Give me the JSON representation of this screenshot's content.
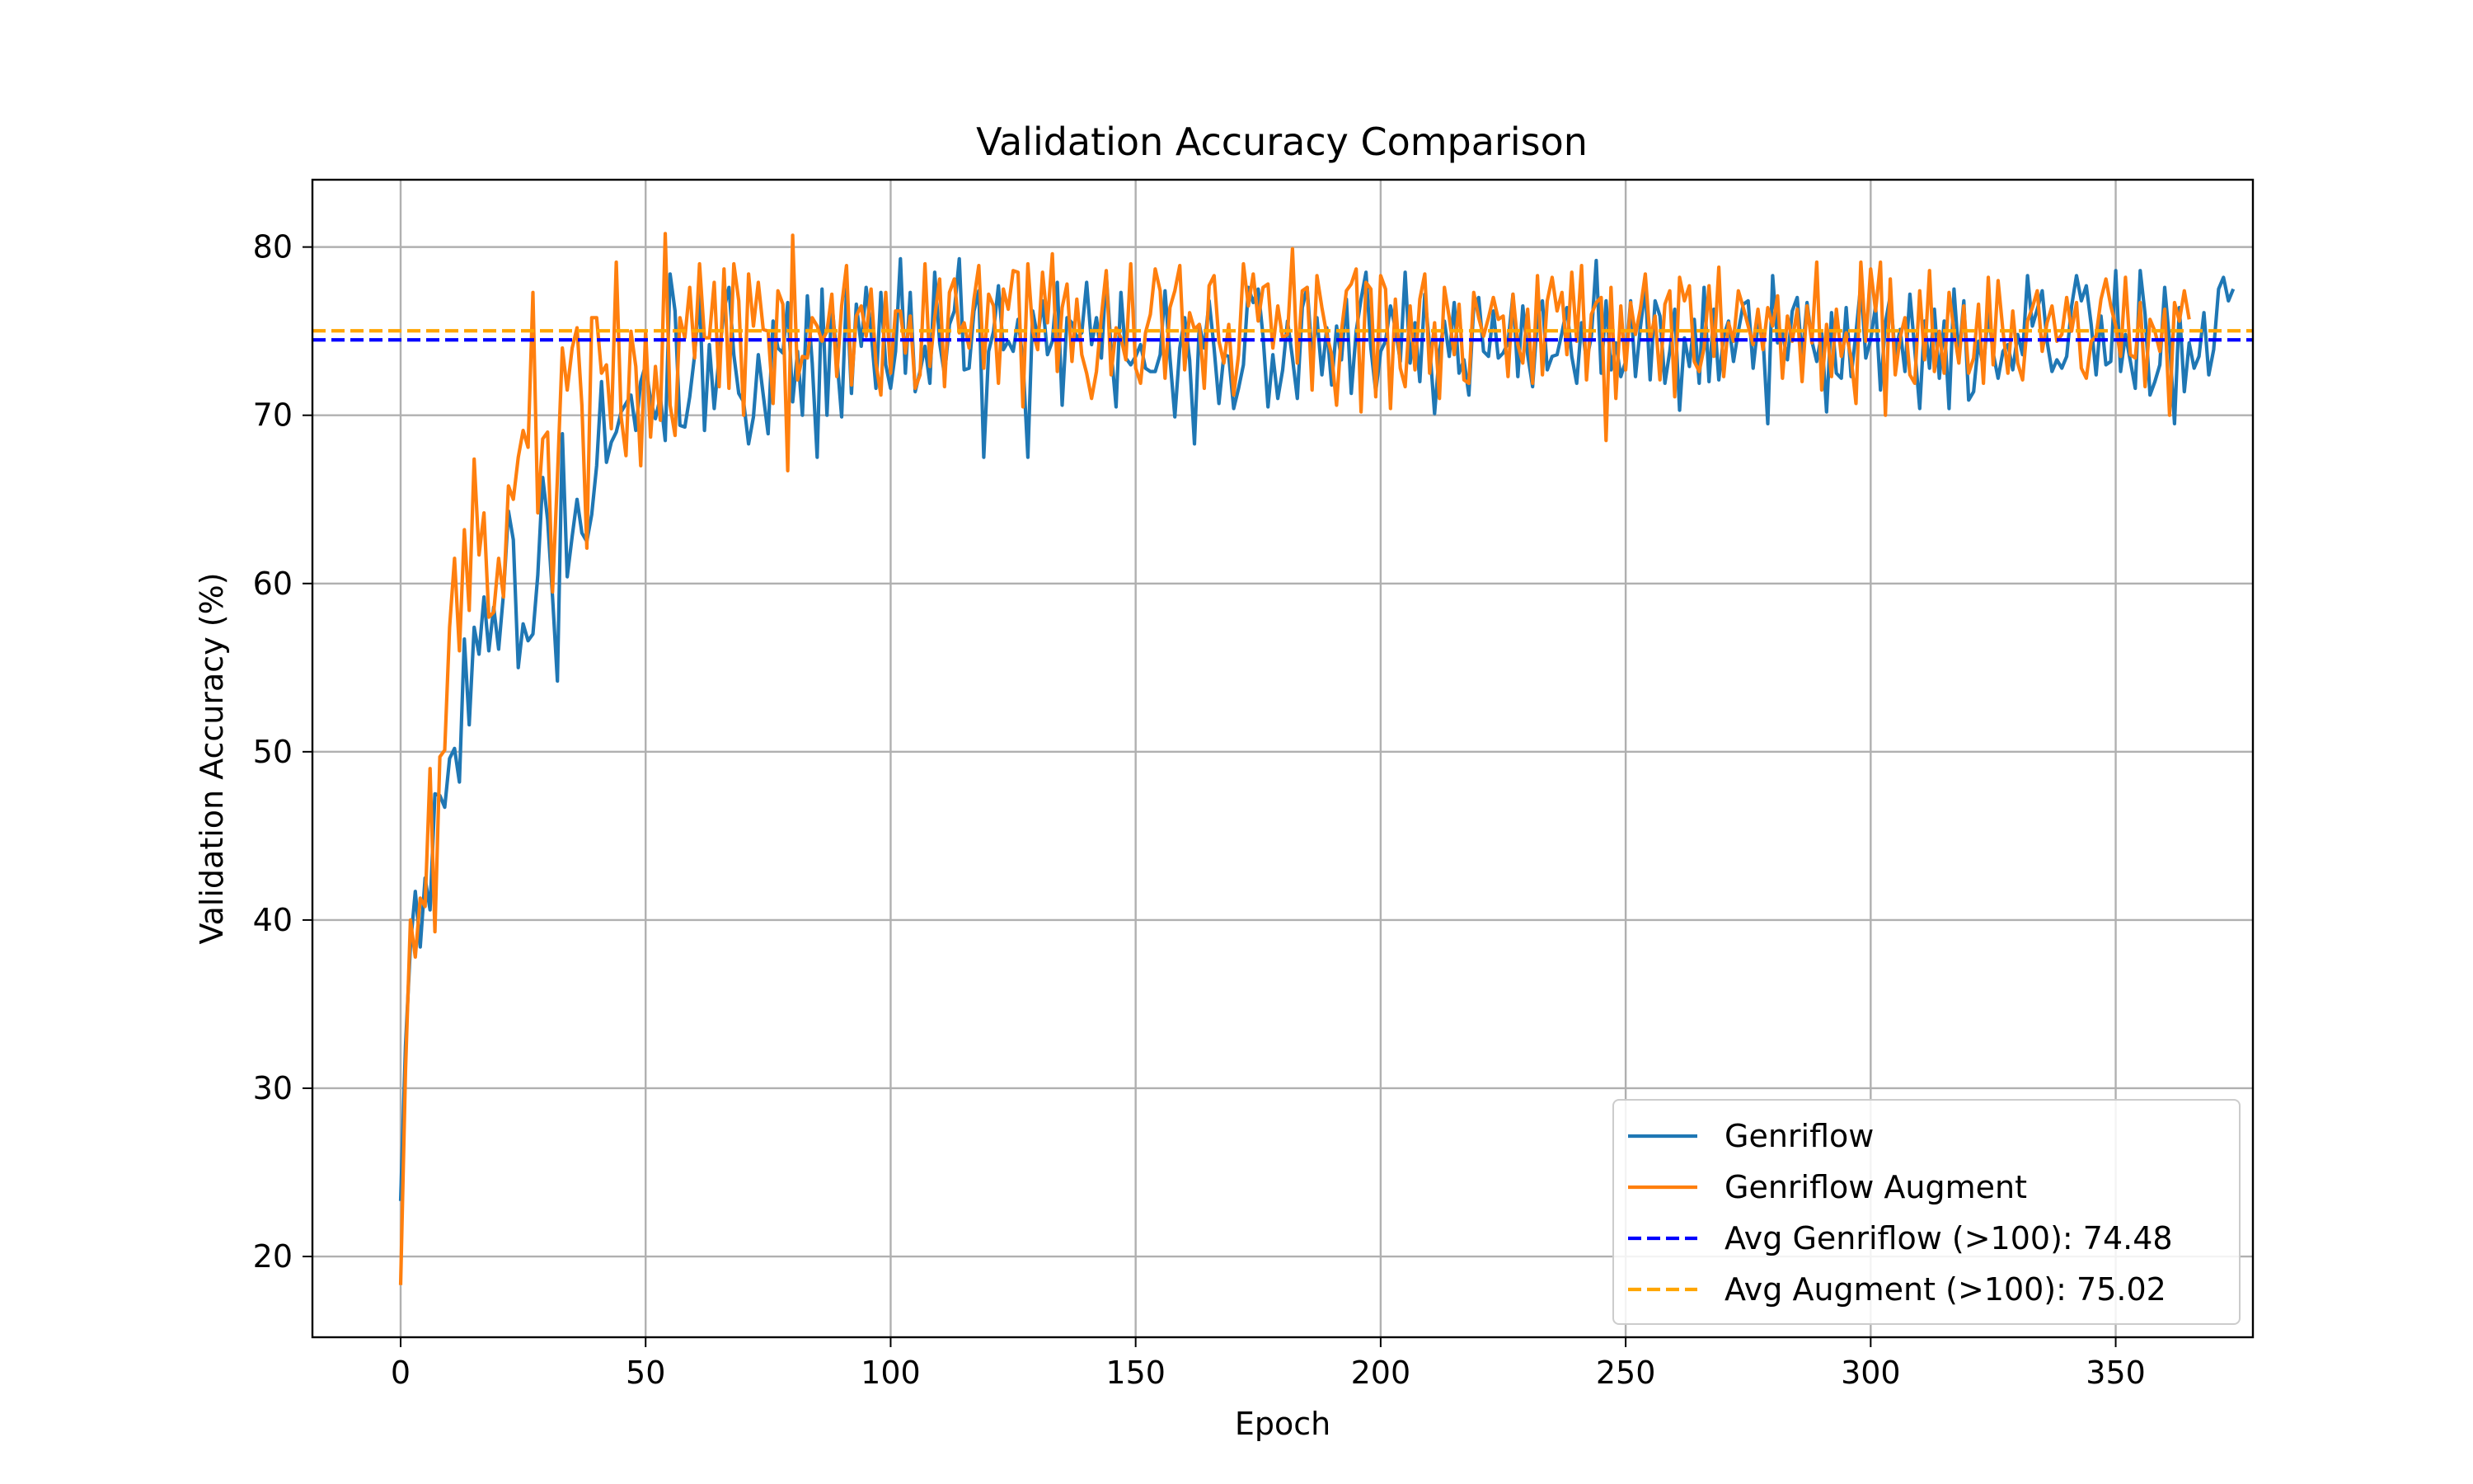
{
  "chart_data": {
    "type": "line",
    "title": "Validation Accuracy Comparison",
    "xlabel": "Epoch",
    "ylabel": "Validation Accuracy (%)",
    "xlim": [
      -18,
      378
    ],
    "ylim": [
      15.2,
      84.0
    ],
    "xticks": [
      0,
      50,
      100,
      150,
      200,
      250,
      300,
      350
    ],
    "yticks": [
      20,
      30,
      40,
      50,
      60,
      70,
      80
    ],
    "grid": true,
    "legend_position": "bottom-right",
    "x": {
      "start": 0,
      "end": 359,
      "step": 1
    },
    "series": [
      {
        "name": "Genriflow",
        "color": "#1f77b4",
        "style": "solid",
        "values": [
          23.3,
          32.5,
          38.5,
          41.7,
          38.4,
          42.5,
          40.6,
          47.5,
          47.4,
          46.7,
          49.6,
          50.2,
          48.2,
          56.7,
          51.6,
          57.4,
          55.8,
          59.2,
          56.0,
          58.6,
          56.1,
          59.4,
          64.3,
          62.6,
          55.0,
          57.6,
          56.6,
          57.0,
          60.5,
          66.3,
          63.8,
          59.2,
          54.2,
          68.9,
          60.4,
          62.8,
          65.0,
          63.0,
          62.5,
          64.1,
          67.0,
          72.0,
          67.2,
          68.4,
          69.0,
          70.2,
          70.7,
          71.2,
          69.1,
          72.0,
          73.0,
          70.9,
          69.8,
          71.1,
          68.5,
          78.4,
          76.2,
          69.4,
          69.3,
          71.1,
          73.6,
          77.2,
          69.1,
          74.2,
          70.4,
          73.5,
          76.3,
          77.6,
          73.6,
          71.3,
          70.8,
          68.3,
          69.9,
          73.6,
          71.2,
          68.9,
          75.6,
          74.0,
          73.7,
          76.7,
          70.8,
          73.8,
          70.0,
          77.1,
          73.1,
          67.5,
          77.5,
          70.0,
          76.7,
          73.5,
          69.9,
          77.5,
          71.3,
          76.6,
          74.1,
          77.6,
          75.0,
          71.6,
          77.3,
          73.0,
          71.6,
          73.8,
          79.3,
          72.5,
          77.3,
          71.4,
          72.6,
          74.1,
          71.9,
          78.5,
          74.3,
          72.4,
          75.4,
          76.2,
          79.3,
          72.7,
          72.8,
          76.2,
          77.4,
          67.5,
          73.8,
          75.0,
          77.7,
          73.9,
          74.4,
          73.8,
          75.7,
          73.3,
          67.5,
          76.2,
          74.6,
          76.8,
          73.6,
          74.4,
          77.9,
          70.6,
          75.8,
          75.5,
          74.6,
          74.9,
          77.9,
          74.2,
          75.8,
          73.4,
          78.4,
          73.9,
          70.5,
          77.3,
          73.4,
          73.0,
          73.5,
          74.2,
          72.8,
          72.6,
          72.6,
          73.6,
          77.4,
          73.4,
          69.9,
          74.0,
          75.8,
          73.3,
          68.3,
          75.4,
          74.0,
          76.8,
          74.0,
          70.7,
          73.6,
          73.5,
          70.4,
          71.6,
          73.0,
          77.6,
          76.7,
          77.5,
          74.7,
          70.5,
          73.6,
          71.0,
          72.7,
          75.6,
          73.4,
          71.0,
          76.4,
          77.6,
          73.5,
          75.8,
          72.4,
          75.2,
          71.8,
          75.3,
          73.3,
          76.9,
          71.3,
          75.0,
          76.9,
          78.5,
          74.0,
          71.4,
          73.8,
          74.4,
          76.5,
          75.2,
          73.2,
          78.5,
          73.1,
          75.5,
          72.0,
          77.2,
          74.1,
          70.1,
          73.8,
          75.6,
          73.5,
          76.7,
          72.5,
          73.3,
          71.2,
          76.5,
          77.0,
          73.8,
          73.5,
          76.2,
          73.4,
          73.7,
          74.3,
          77.2,
          72.3,
          76.5,
          73.6,
          71.7,
          75.8,
          76.8,
          72.7,
          73.5,
          73.6,
          74.9,
          76.4,
          73.5,
          71.9,
          75.5,
          73.2,
          74.7,
          79.2,
          72.5,
          76.8,
          72.7,
          74.3,
          72.3,
          73.2,
          76.8,
          72.3,
          75.2,
          77.6,
          72.1,
          76.8,
          75.9,
          71.9,
          73.8,
          76.3,
          70.3,
          74.6,
          72.9,
          75.7,
          71.9,
          77.6,
          72.0,
          76.3,
          72.1,
          74.7,
          75.6,
          73.2,
          75.0,
          76.6,
          76.8,
          72.8,
          75.4,
          74.7,
          69.5,
          78.3,
          74.3,
          74.9,
          73.3,
          76.2,
          77.0,
          73.4,
          76.7,
          74.4,
          73.2,
          74.9,
          70.2,
          76.1,
          72.5,
          72.2,
          76.4,
          72.3,
          74.9,
          77.8,
          73.4,
          74.5,
          76.5,
          71.5,
          75.5,
          77.1,
          73.6,
          75.1,
          72.6,
          77.2,
          73.9,
          70.4,
          75.6,
          72.8,
          76.3,
          72.2,
          75.6,
          70.4,
          77.5,
          73.4,
          76.8,
          70.9,
          71.4,
          74.4,
          72.8,
          76.2,
          73.7,
          72.2,
          73.8,
          74.2,
          72.7,
          74.8,
          73.6,
          78.3,
          75.3,
          76.3,
          77.4,
          74.4,
          72.6,
          73.3,
          72.8,
          73.5,
          76.5,
          78.3,
          76.8,
          77.7,
          75.4,
          72.4,
          75.9,
          73.0,
          73.2,
          78.6,
          72.6,
          74.8,
          73.2,
          71.6,
          78.6,
          76.0,
          71.2,
          72.0,
          73.0,
          77.6,
          74.4,
          69.5,
          76.4,
          71.4,
          74.3,
          72.8,
          73.5,
          76.1,
          72.4,
          73.9,
          77.5,
          78.2,
          76.8,
          77.5
        ]
      },
      {
        "name": "Genriflow Augment",
        "color": "#ff7f0e",
        "style": "solid",
        "values": [
          18.3,
          31.0,
          40.0,
          37.8,
          41.3,
          40.8,
          49.0,
          39.3,
          49.7,
          50.1,
          57.4,
          61.5,
          56.0,
          63.2,
          58.4,
          67.4,
          61.7,
          64.2,
          58.0,
          58.3,
          61.5,
          59.2,
          65.8,
          65.0,
          67.5,
          69.1,
          68.1,
          77.3,
          64.2,
          68.6,
          69.0,
          59.5,
          66.3,
          74.0,
          71.5,
          74.0,
          75.2,
          70.6,
          62.1,
          75.8,
          75.8,
          72.5,
          73.0,
          69.2,
          79.1,
          69.9,
          67.6,
          75.0,
          72.9,
          67.0,
          75.0,
          68.7,
          72.9,
          69.7,
          80.8,
          70.6,
          68.8,
          75.8,
          74.6,
          77.6,
          73.4,
          79.0,
          74.6,
          74.6,
          77.9,
          71.7,
          78.7,
          71.6,
          79.0,
          76.8,
          70.0,
          78.4,
          75.3,
          77.9,
          75.1,
          75.0,
          70.7,
          77.4,
          76.6,
          66.7,
          80.7,
          72.1,
          73.5,
          73.4,
          75.8,
          75.3,
          74.4,
          75.0,
          77.2,
          72.3,
          76.5,
          78.9,
          71.8,
          75.9,
          76.5,
          74.7,
          77.5,
          73.1,
          71.2,
          77.3,
          72.5,
          76.2,
          76.2,
          73.7,
          75.9,
          71.6,
          72.4,
          79.0,
          72.9,
          75.8,
          78.1,
          71.7,
          77.3,
          78.1,
          74.9,
          75.5,
          74.0,
          76.9,
          78.9,
          72.8,
          77.2,
          76.5,
          71.9,
          77.5,
          76.3,
          78.6,
          78.5,
          70.5,
          79.0,
          75.0,
          73.9,
          78.5,
          75.5,
          79.6,
          72.6,
          76.4,
          77.8,
          73.2,
          76.9,
          73.6,
          72.5,
          71.0,
          72.6,
          75.9,
          78.6,
          72.4,
          75.2,
          74.6,
          73.3,
          79.0,
          72.8,
          71.9,
          74.9,
          76.0,
          78.7,
          77.4,
          72.2,
          76.4,
          77.4,
          78.9,
          72.7,
          76.1,
          75.1,
          75.4,
          71.6,
          77.7,
          78.3,
          74.4,
          73.1,
          75.4,
          71.2,
          73.6,
          79.0,
          76.5,
          78.4,
          75.6,
          77.6,
          77.8,
          74.0,
          76.5,
          74.6,
          74.8,
          79.9,
          73.1,
          77.4,
          77.6,
          71.5,
          78.3,
          76.4,
          74.8,
          73.6,
          70.6,
          75.0,
          77.4,
          77.8,
          78.7,
          70.2,
          77.9,
          77.5,
          71.1,
          78.3,
          77.5,
          70.4,
          76.9,
          72.8,
          71.7,
          76.5,
          72.7,
          76.9,
          78.4,
          72.5,
          75.5,
          71.0,
          77.6,
          75.8,
          73.6,
          76.6,
          72.1,
          71.9,
          77.3,
          75.8,
          74.7,
          75.8,
          77.0,
          75.7,
          75.9,
          72.3,
          77.2,
          74.2,
          73.1,
          76.3,
          71.9,
          78.3,
          72.4,
          76.8,
          78.2,
          76.2,
          77.3,
          73.6,
          78.5,
          74.4,
          78.9,
          72.1,
          76.0,
          76.7,
          77.0,
          68.5,
          77.6,
          71.0,
          76.5,
          72.7,
          76.7,
          74.8,
          76.3,
          78.4,
          74.5,
          75.9,
          72.1,
          76.6,
          77.4,
          71.1,
          78.2,
          76.8,
          77.7,
          73.2,
          72.6,
          74.0,
          77.7,
          73.5,
          78.8,
          72.3,
          75.5,
          74.4,
          77.4,
          76.4,
          75.3,
          74.2,
          76.3,
          73.9,
          76.4,
          75.3,
          77.1,
          72.2,
          75.9,
          74.4,
          76.3,
          72.0,
          76.5,
          74.3,
          79.1,
          71.5,
          75.4,
          72.3,
          76.3,
          73.5,
          74.9,
          73.4,
          70.7,
          79.1,
          74.4,
          78.7,
          76.2,
          79.1,
          70.0,
          78.1,
          72.4,
          74.6,
          75.8,
          72.4,
          71.9,
          77.4,
          73.3,
          78.6,
          72.6,
          75.0,
          72.5,
          77.3,
          75.0,
          73.1,
          76.5,
          72.5,
          73.4,
          76.6,
          71.9,
          78.2,
          73.0,
          78.0,
          75.0,
          72.5,
          76.2,
          73.1,
          72.1,
          75.6,
          76.4,
          77.4,
          73.8,
          75.5,
          76.5,
          74.4,
          74.8,
          77.0,
          75.0,
          76.7,
          72.8,
          72.2,
          74.4,
          74.7,
          76.9,
          78.1,
          76.5,
          75.3,
          73.5,
          78.2,
          73.6,
          73.4,
          76.7,
          71.7,
          75.7,
          75.0,
          73.8,
          76.3,
          70.0,
          76.7,
          75.6,
          77.4,
          75.7
        ]
      },
      {
        "name": "Avg Genriflow (>100): 74.48",
        "color": "#0000ff",
        "style": "dashed",
        "y": 74.48
      },
      {
        "name": "Avg Augment (>100): 75.02",
        "color": "#ffa500",
        "style": "dashed",
        "y": 75.02
      }
    ]
  }
}
